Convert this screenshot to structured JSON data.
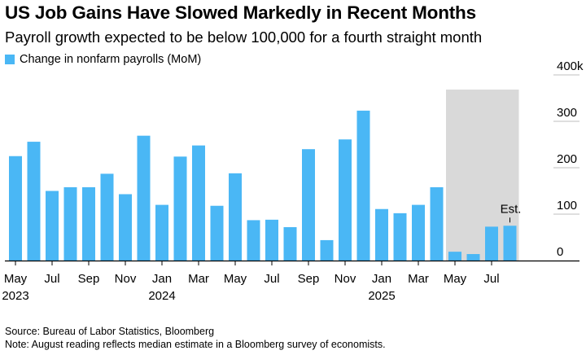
{
  "title": "US Job Gains Have Slowed Markedly in Recent Months",
  "subtitle": "Payroll growth expected to be below 100,000 for a fourth straight month",
  "source": "Source: Bureau of Labor Statistics, Bloomberg",
  "note": "Note: August reading reflects median estimate in a Bloomberg survey of economists.",
  "colors": {
    "bar": "#4ab7f5",
    "shade": "#d9d9d9",
    "axis": "#000000"
  },
  "chart_data": {
    "type": "bar",
    "legend": "Change in nonfarm payrolls (MoM)",
    "legend_position": "top-left",
    "highlight_range": [
      "May 2025",
      "Aug 2025"
    ],
    "annotation": {
      "text": "Est.",
      "category": "Aug 2025"
    },
    "categories": [
      "May 2023",
      "Jun 2023",
      "Jul 2023",
      "Aug 2023",
      "Sep 2023",
      "Oct 2023",
      "Nov 2023",
      "Dec 2023",
      "Jan 2024",
      "Feb 2024",
      "Mar 2024",
      "Apr 2024",
      "May 2024",
      "Jun 2024",
      "Jul 2024",
      "Aug 2024",
      "Sep 2024",
      "Oct 2024",
      "Nov 2024",
      "Dec 2024",
      "Jan 2025",
      "Feb 2025",
      "Mar 2025",
      "Apr 2025",
      "May 2025",
      "Jun 2025",
      "Jul 2025",
      "Aug 2025"
    ],
    "values": [
      225,
      256,
      150,
      158,
      158,
      187,
      143,
      269,
      120,
      224,
      248,
      118,
      188,
      87,
      88,
      72,
      240,
      44,
      261,
      323,
      111,
      102,
      120,
      158,
      19,
      14,
      73,
      75
    ],
    "ylim": [
      0,
      400
    ],
    "yticks": [
      0,
      100,
      200,
      300,
      400
    ],
    "ytick_labels": [
      "0",
      "100",
      "200",
      "300",
      "400k"
    ],
    "xtick_labels": [
      {
        "label": "May",
        "category": "May 2023",
        "year": "2023"
      },
      {
        "label": "Jul",
        "category": "Jul 2023"
      },
      {
        "label": "Sep",
        "category": "Sep 2023"
      },
      {
        "label": "Nov",
        "category": "Nov 2023"
      },
      {
        "label": "Jan",
        "category": "Jan 2024",
        "year": "2024"
      },
      {
        "label": "Mar",
        "category": "Mar 2024"
      },
      {
        "label": "May",
        "category": "May 2024"
      },
      {
        "label": "Jul",
        "category": "Jul 2024"
      },
      {
        "label": "Sep",
        "category": "Sep 2024"
      },
      {
        "label": "Nov",
        "category": "Nov 2024"
      },
      {
        "label": "Jan",
        "category": "Jan 2025",
        "year": "2025"
      },
      {
        "label": "Mar",
        "category": "Mar 2025"
      },
      {
        "label": "May",
        "category": "May 2025"
      },
      {
        "label": "Jul",
        "category": "Jul 2025"
      }
    ]
  }
}
